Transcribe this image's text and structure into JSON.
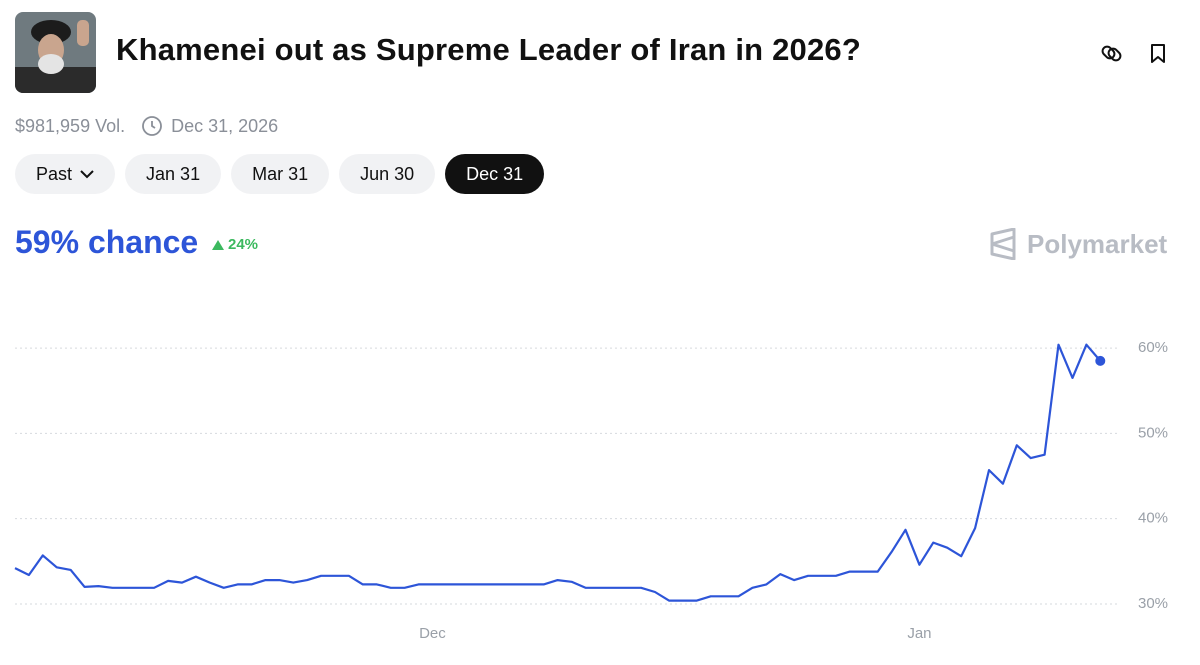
{
  "header": {
    "title": "Khamenei out as Supreme Leader of Iran in 2026?",
    "volume": "$981,959 Vol.",
    "end_date": "Dec 31, 2026"
  },
  "tabs": [
    "Past",
    "Jan 31",
    "Mar 31",
    "Jun 30",
    "Dec 31"
  ],
  "chance": "59% chance",
  "change": "24%",
  "brand": "Polymarket",
  "chart_data": {
    "type": "line",
    "color": "#2d55d8",
    "grid": true,
    "categories": [
      null,
      null,
      null,
      null,
      null,
      null,
      null,
      null,
      null,
      null,
      null,
      null,
      null,
      null,
      null,
      null,
      null,
      null,
      null,
      null,
      null,
      null,
      null,
      null,
      null,
      null,
      null,
      null,
      null,
      null,
      "Dec",
      null,
      null,
      null,
      null,
      null,
      null,
      null,
      null,
      null,
      null,
      null,
      null,
      null,
      null,
      null,
      null,
      null,
      null,
      null,
      null,
      null,
      null,
      null,
      null,
      null,
      null,
      null,
      null,
      null,
      null,
      null,
      null,
      null,
      null,
      "Jan",
      null,
      null,
      null,
      null,
      null,
      null,
      null,
      null,
      null,
      null,
      null,
      null,
      null
    ],
    "series": [
      {
        "name": null,
        "color": "#2d55d8",
        "values": [
          34.2,
          33.4,
          35.7,
          34.3,
          34.0,
          32.0,
          32.1,
          31.9,
          31.9,
          31.9,
          31.9,
          32.7,
          32.5,
          33.2,
          32.5,
          31.9,
          32.3,
          32.3,
          32.8,
          32.8,
          32.5,
          32.8,
          33.3,
          33.3,
          33.3,
          32.3,
          32.3,
          31.9,
          31.9,
          32.3,
          32.3,
          32.3,
          32.3,
          32.3,
          32.3,
          32.3,
          32.3,
          32.3,
          32.3,
          32.8,
          32.6,
          31.9,
          31.9,
          31.9,
          31.9,
          31.9,
          31.4,
          30.4,
          30.4,
          30.4,
          30.9,
          30.9,
          30.9,
          31.9,
          32.3,
          33.5,
          32.8,
          33.3,
          33.3,
          33.3,
          33.8,
          33.8,
          33.8,
          36.1,
          38.7,
          34.6,
          37.2,
          36.6,
          35.6,
          38.9,
          45.7,
          44.1,
          48.6,
          47.1,
          47.5,
          60.4,
          56.5,
          60.4,
          58.5
        ]
      }
    ],
    "ylim": [
      29,
      63
    ],
    "yticks": [
      {
        "value": 30,
        "label": "30%"
      },
      {
        "value": 40,
        "label": "40%"
      },
      {
        "value": 50,
        "label": "50%"
      },
      {
        "value": 60,
        "label": "60%"
      }
    ]
  }
}
